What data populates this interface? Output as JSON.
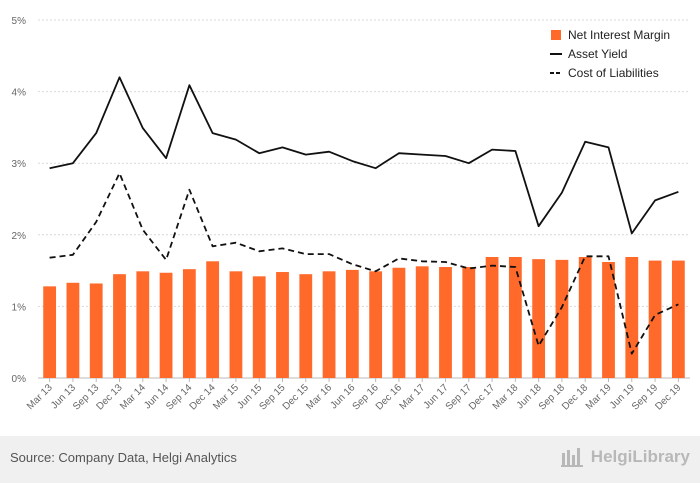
{
  "chart_data": {
    "type": "bar+line",
    "categories": [
      "Mar 13",
      "Jun 13",
      "Sep 13",
      "Dec 13",
      "Mar 14",
      "Jun 14",
      "Sep 14",
      "Dec 14",
      "Mar 15",
      "Jun 15",
      "Sep 15",
      "Dec 15",
      "Mar 16",
      "Jun 16",
      "Sep 16",
      "Dec 16",
      "Mar 17",
      "Jun 17",
      "Sep 17",
      "Dec 17",
      "Mar 18",
      "Jun 18",
      "Sep 18",
      "Dec 18",
      "Mar 19",
      "Jun 19",
      "Sep 19",
      "Dec 19"
    ],
    "series": [
      {
        "name": "Net Interest Margin",
        "kind": "bar",
        "color": "#ff6a2a",
        "values": [
          1.28,
          1.33,
          1.32,
          1.45,
          1.49,
          1.47,
          1.52,
          1.63,
          1.49,
          1.42,
          1.48,
          1.45,
          1.49,
          1.51,
          1.49,
          1.54,
          1.56,
          1.55,
          1.55,
          1.69,
          1.69,
          1.66,
          1.65,
          1.69,
          1.62,
          1.69,
          1.64,
          1.64
        ]
      },
      {
        "name": "Asset Yield",
        "kind": "line",
        "style": "solid",
        "color": "#111111",
        "values": [
          2.93,
          3.0,
          3.42,
          4.2,
          3.49,
          3.07,
          4.09,
          3.42,
          3.33,
          3.14,
          3.22,
          3.12,
          3.16,
          3.03,
          2.93,
          3.14,
          3.12,
          3.1,
          3.0,
          3.19,
          3.17,
          2.12,
          2.59,
          3.3,
          3.22,
          2.02,
          2.48,
          2.6
        ]
      },
      {
        "name": "Cost of Liabilities",
        "kind": "line",
        "style": "dashed",
        "color": "#111111",
        "values": [
          1.68,
          1.72,
          2.18,
          2.86,
          2.07,
          1.65,
          2.63,
          1.84,
          1.89,
          1.77,
          1.81,
          1.73,
          1.73,
          1.59,
          1.49,
          1.67,
          1.63,
          1.62,
          1.53,
          1.57,
          1.55,
          0.45,
          0.99,
          1.7,
          1.7,
          0.34,
          0.88,
          1.03
        ]
      }
    ],
    "yticks": [
      "0%",
      "1%",
      "2%",
      "3%",
      "4%",
      "5%"
    ],
    "ylim": [
      0,
      5
    ],
    "grid": true,
    "legend_position": "top-right"
  },
  "footer": {
    "source": "Source: Company Data, Helgi Analytics",
    "brand": "HelgiLibrary"
  },
  "colors": {
    "bar": "#ff6a2a",
    "grid": "#d9d9d9",
    "footer_bg": "#f0f0f0"
  }
}
